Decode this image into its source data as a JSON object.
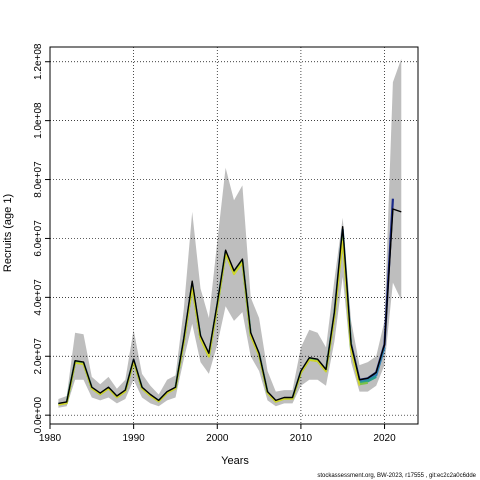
{
  "chart_data": {
    "type": "line",
    "xlabel": "Years",
    "ylabel": "Recruits (age 1)",
    "xlim": [
      1980,
      2024
    ],
    "ylim": [
      -3000000,
      125000000
    ],
    "xticks": [
      1980,
      1990,
      2000,
      2010,
      2020
    ],
    "xtick_labels": [
      "1980",
      "1990",
      "2000",
      "2010",
      "2020"
    ],
    "yticks": [
      0,
      20000000,
      40000000,
      60000000,
      80000000,
      100000000,
      120000000
    ],
    "ytick_labels": [
      "0.0e+00",
      "2.0e+07",
      "4.0e+07",
      "6.0e+07",
      "8.0e+07",
      "1.0e+08",
      "1.2e+08"
    ],
    "grid": true,
    "footer": "stockassessment.org, BW-2023, r17555 , git:ec2c2a0c6dde",
    "band": {
      "years": [
        1981,
        1982,
        1983,
        1984,
        1985,
        1986,
        1987,
        1988,
        1989,
        1990,
        1991,
        1992,
        1993,
        1994,
        1995,
        1996,
        1997,
        1998,
        1999,
        2000,
        2001,
        2002,
        2003,
        2004,
        2005,
        2006,
        2007,
        2008,
        2009,
        2010,
        2011,
        2012,
        2013,
        2014,
        2015,
        2016,
        2017,
        2018,
        2019,
        2020,
        2021,
        2022
      ],
      "lower": [
        2500000,
        3000000,
        12000000,
        12000000,
        6000000,
        5000000,
        6000000,
        4000000,
        5500000,
        12000000,
        6000000,
        4000000,
        3000000,
        5000000,
        6000000,
        19000000,
        31000000,
        18000000,
        14000000,
        24000000,
        37000000,
        32000000,
        35000000,
        20000000,
        15000000,
        5000000,
        3000000,
        4000000,
        4000000,
        10000000,
        12000000,
        12000000,
        10000000,
        25000000,
        47000000,
        18000000,
        8000000,
        8000000,
        10000000,
        17000000,
        45000000,
        39000000
      ],
      "upper": [
        5500000,
        6500000,
        28000000,
        27500000,
        13000000,
        10500000,
        13000000,
        9000000,
        12000000,
        29000000,
        14000000,
        10000000,
        7000000,
        12000000,
        13500000,
        36000000,
        69000000,
        43000000,
        33000000,
        59000000,
        84000000,
        73000000,
        78000000,
        40000000,
        33000000,
        15000000,
        8000000,
        8500000,
        8500000,
        23000000,
        29000000,
        28000000,
        23000000,
        46000000,
        67000000,
        32000000,
        17000000,
        18000000,
        20000000,
        32000000,
        113000000,
        121000000
      ],
      "color": "#bebebe"
    },
    "series": [
      {
        "color": "#000000",
        "x": [
          1981,
          1982,
          1983,
          1984,
          1985,
          1986,
          1987,
          1988,
          1989,
          1990,
          1991,
          1992,
          1993,
          1994,
          1995,
          1996,
          1997,
          1998,
          1999,
          2000,
          2001,
          2002,
          2003,
          2004,
          2005,
          2006,
          2007,
          2008,
          2009,
          2010,
          2011,
          2012,
          2013,
          2014,
          2015,
          2016,
          2017,
          2018,
          2019,
          2020,
          2021,
          2022
        ],
        "y": [
          4000000,
          4500000,
          18500000,
          18000000,
          9500000,
          7500000,
          9500000,
          6500000,
          8500000,
          19000000,
          9500000,
          7000000,
          5000000,
          8000000,
          9500000,
          26000000,
          45500000,
          27000000,
          21000000,
          38000000,
          56000000,
          49000000,
          53000000,
          28000000,
          21000000,
          8000000,
          5000000,
          6000000,
          6000000,
          15000000,
          19500000,
          19000000,
          15500000,
          35000000,
          64000000,
          24000000,
          12000000,
          12500000,
          14500000,
          24000000,
          70000000,
          69000000
        ]
      },
      {
        "color": "#1b2a8a",
        "x": [
          2016,
          2017,
          2018,
          2019,
          2020,
          2021
        ],
        "y": [
          24000000,
          12000000,
          12500000,
          14500000,
          24000000,
          73500000
        ]
      },
      {
        "color": "#2f7fb5",
        "x": [
          1981,
          1982,
          1983,
          1984,
          1985,
          1986,
          1987,
          1988,
          1989,
          1990,
          1991,
          1992,
          1993,
          1994,
          1995,
          1996,
          1997,
          1998,
          1999,
          2000,
          2001,
          2002,
          2003,
          2004,
          2005,
          2006,
          2007,
          2008,
          2009,
          2010,
          2011,
          2012,
          2013,
          2014,
          2015,
          2016,
          2017,
          2018,
          2019,
          2020
        ],
        "y": [
          3800000,
          4300000,
          18200000,
          17800000,
          9300000,
          7300000,
          9300000,
          6300000,
          8300000,
          18700000,
          9300000,
          6800000,
          4900000,
          7800000,
          9300000,
          25500000,
          44500000,
          26500000,
          20500000,
          37500000,
          55500000,
          48500000,
          52500000,
          27500000,
          20800000,
          7800000,
          4800000,
          5800000,
          5800000,
          14800000,
          19200000,
          18800000,
          15300000,
          34500000,
          63000000,
          23500000,
          11500000,
          12000000,
          13500000,
          23000000
        ]
      },
      {
        "color": "#28a08c",
        "x": [
          1981,
          1982,
          1983,
          1984,
          1985,
          1986,
          1987,
          1988,
          1989,
          1990,
          1991,
          1992,
          1993,
          1994,
          1995,
          1996,
          1997,
          1998,
          1999,
          2000,
          2001,
          2002,
          2003,
          2004,
          2005,
          2006,
          2007,
          2008,
          2009,
          2010,
          2011,
          2012,
          2013,
          2014,
          2015,
          2016,
          2017,
          2018,
          2019
        ],
        "y": [
          3700000,
          4200000,
          18000000,
          17600000,
          9200000,
          7200000,
          9200000,
          6200000,
          8200000,
          18500000,
          9200000,
          6700000,
          4800000,
          7700000,
          9200000,
          25200000,
          44000000,
          26200000,
          20200000,
          37200000,
          55200000,
          48200000,
          52200000,
          27200000,
          20600000,
          7700000,
          4700000,
          5700000,
          5700000,
          14600000,
          19000000,
          18600000,
          15100000,
          34000000,
          61500000,
          23000000,
          11000000,
          11500000,
          13000000
        ]
      },
      {
        "color": "#7cc24a",
        "x": [
          1981,
          1982,
          1983,
          1984,
          1985,
          1986,
          1987,
          1988,
          1989,
          1990,
          1991,
          1992,
          1993,
          1994,
          1995,
          1996,
          1997,
          1998,
          1999,
          2000,
          2001,
          2002,
          2003,
          2004,
          2005,
          2006,
          2007,
          2008,
          2009,
          2010,
          2011,
          2012,
          2013,
          2014,
          2015,
          2016,
          2017,
          2018
        ],
        "y": [
          3600000,
          4100000,
          17800000,
          17400000,
          9100000,
          7100000,
          9100000,
          6100000,
          8100000,
          18300000,
          9100000,
          6600000,
          4700000,
          7600000,
          9100000,
          25000000,
          43500000,
          26000000,
          20000000,
          37000000,
          55000000,
          48000000,
          52000000,
          27000000,
          20400000,
          7600000,
          4600000,
          5600000,
          5600000,
          14400000,
          18800000,
          18400000,
          14900000,
          33500000,
          60000000,
          22500000,
          10500000,
          11000000
        ]
      },
      {
        "color": "#d4d62a",
        "x": [
          1981,
          1982,
          1983,
          1984,
          1985,
          1986,
          1987,
          1988,
          1989,
          1990,
          1991,
          1992,
          1993,
          1994,
          1995,
          1996,
          1997,
          1998,
          1999,
          2000,
          2001,
          2002,
          2003,
          2004,
          2005,
          2006,
          2007,
          2008,
          2009,
          2010,
          2011,
          2012,
          2013,
          2014,
          2015,
          2016,
          2017
        ],
        "y": [
          3500000,
          4000000,
          17700000,
          17300000,
          9000000,
          7000000,
          9000000,
          6000000,
          8000000,
          18200000,
          9000000,
          6500000,
          4600000,
          7500000,
          9000000,
          24800000,
          43200000,
          25800000,
          19800000,
          36800000,
          54800000,
          47800000,
          51800000,
          26800000,
          20200000,
          7500000,
          4500000,
          5500000,
          5500000,
          14300000,
          18700000,
          18300000,
          14800000,
          33200000,
          59000000,
          22000000,
          10000000
        ]
      }
    ]
  }
}
